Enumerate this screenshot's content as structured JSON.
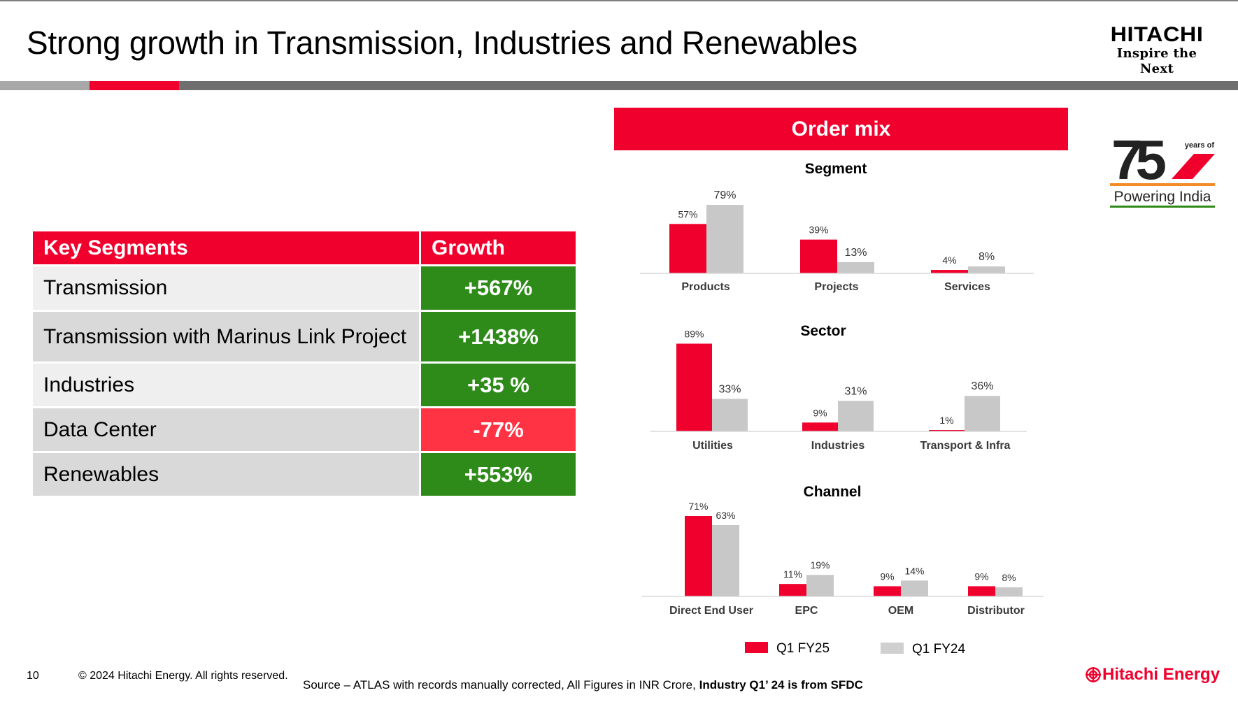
{
  "slide": {
    "title": "Strong growth in Transmission, Industries and Renewables",
    "page_number": "10",
    "copyright": "© 2024 Hitachi Energy. All rights reserved.",
    "source_text": "Source – ATLAS with records manually corrected, All Figures in INR Crore,",
    "source_bold": "Industry Q1’ 24 is from SFDC"
  },
  "logos": {
    "hitachi_brand": "HITACHI",
    "hitachi_tagline": "Inspire the Next",
    "badge_number": "75",
    "badge_years": "years of",
    "badge_caption": "Powering India",
    "footer_brand": "Hitachi Energy"
  },
  "colors": {
    "accent_red": "#f0002d",
    "growth_green": "#2e8b1a",
    "decline_red": "#ff3344",
    "series_grey": "#c8c8c8"
  },
  "key_segments_table": {
    "headers": [
      "Key Segments",
      "Growth"
    ],
    "rows": [
      {
        "segment": "Transmission",
        "growth": "+567%",
        "status": "positive"
      },
      {
        "segment": "Transmission with Marinus Link Project",
        "growth": "+1438%",
        "status": "positive"
      },
      {
        "segment": "Industries",
        "growth": "+35 %",
        "status": "positive"
      },
      {
        "segment": "Data Center",
        "growth": "-77%",
        "status": "negative"
      },
      {
        "segment": "Renewables",
        "growth": "+553%",
        "status": "positive"
      }
    ]
  },
  "order_mix": {
    "banner": "Order mix"
  },
  "chart_data": [
    {
      "type": "bar",
      "title": "Segment",
      "categories": [
        "Products",
        "Projects",
        "Services"
      ],
      "series": [
        {
          "name": "Q1 FY25",
          "values": [
            57,
            39,
            4
          ],
          "labels": [
            "57%",
            "39%",
            "4%"
          ]
        },
        {
          "name": "Q1 FY24",
          "values": [
            79,
            13,
            8
          ],
          "labels": [
            "79%",
            "13%",
            "8%"
          ]
        }
      ],
      "ylabel": "",
      "xlabel": "",
      "ylim": [
        0,
        100
      ],
      "grid": false
    },
    {
      "type": "bar",
      "title": "Sector",
      "categories": [
        "Utilities",
        "Industries",
        "Transport & Infra"
      ],
      "series": [
        {
          "name": "Q1 FY25",
          "values": [
            89,
            9,
            1
          ],
          "labels": [
            "89%",
            "9%",
            "1%"
          ]
        },
        {
          "name": "Q1 FY24",
          "values": [
            33,
            31,
            36
          ],
          "labels": [
            "33%",
            "31%",
            "36%"
          ]
        }
      ],
      "ylabel": "",
      "xlabel": "",
      "ylim": [
        0,
        100
      ],
      "grid": false
    },
    {
      "type": "bar",
      "title": "Channel",
      "categories": [
        "Direct End User",
        "EPC",
        "OEM",
        "Distributor"
      ],
      "series": [
        {
          "name": "Q1 FY25",
          "values": [
            71,
            11,
            9,
            9
          ],
          "labels": [
            "71%",
            "11%",
            "9%",
            "9%"
          ]
        },
        {
          "name": "Q1 FY24",
          "values": [
            63,
            19,
            14,
            8
          ],
          "labels": [
            "63%",
            "19%",
            "14%",
            "8%"
          ]
        }
      ],
      "ylabel": "",
      "xlabel": "",
      "ylim": [
        0,
        100
      ],
      "grid": false
    }
  ],
  "legend": {
    "items": [
      {
        "label": "Q1 FY25",
        "color": "#f0002d"
      },
      {
        "label": "Q1 FY24",
        "color": "#d0d0d0"
      }
    ]
  }
}
